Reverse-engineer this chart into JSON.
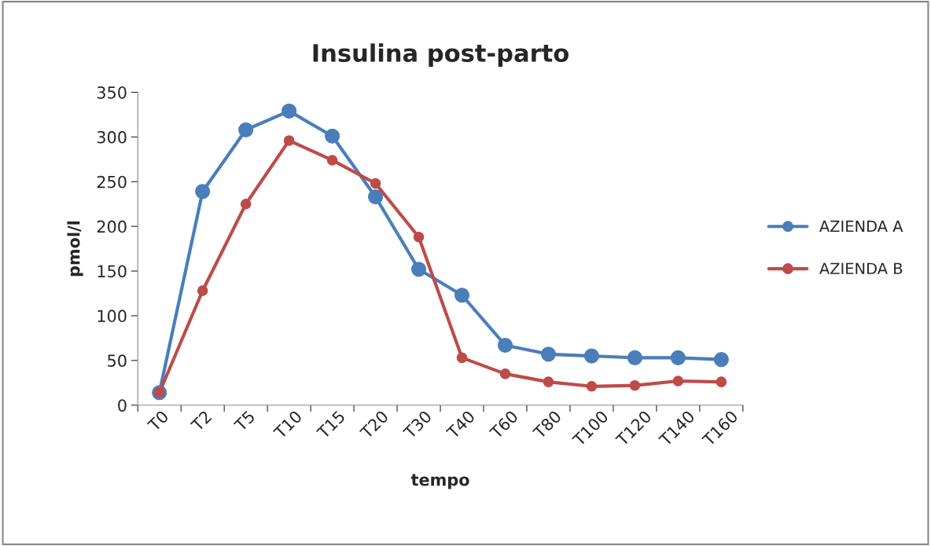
{
  "chart_data": {
    "type": "line",
    "title": "Insulina post-parto",
    "xlabel": "tempo",
    "ylabel": "pmol/l",
    "categories": [
      "T0",
      "T2",
      "T5",
      "T10",
      "T15",
      "T20",
      "T30",
      "T40",
      "T60",
      "T80",
      "T100",
      "T120",
      "T140",
      "T160"
    ],
    "series": [
      {
        "name": "AZIENDA A",
        "color": "#4a7ebb",
        "values": [
          14,
          239,
          308,
          329,
          301,
          233,
          152,
          123,
          67,
          57,
          55,
          53,
          53,
          51
        ]
      },
      {
        "name": "AZIENDA B",
        "color": "#be4b48",
        "values": [
          14,
          128,
          225,
          296,
          274,
          248,
          188,
          53,
          35,
          26,
          21,
          22,
          27,
          26
        ]
      }
    ],
    "ylim": [
      0,
      350
    ],
    "yticks": [
      0,
      50,
      100,
      150,
      200,
      250,
      300,
      350
    ],
    "grid": false,
    "legend": "right",
    "marker": "circle",
    "line_style": "solid"
  }
}
